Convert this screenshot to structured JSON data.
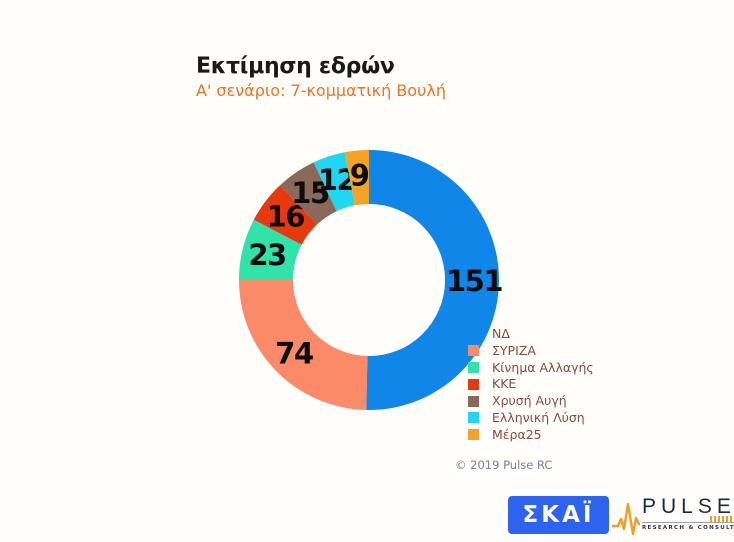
{
  "header": {
    "title": "Εκτίμηση εδρών",
    "subtitle": "Α' σενάριο: 7-κομματική Βουλή",
    "subtitle_color": "#f2711c"
  },
  "chart_data": {
    "type": "pie",
    "variant": "donut",
    "title": "Εκτίμηση εδρών",
    "subtitle": "Α' σενάριο: 7-κομματική Βουλή",
    "total_seats": 300,
    "start_angle_deg": 0,
    "direction": "clockwise",
    "inner_radius_ratio": 0.585,
    "legend_position": "right",
    "categories": [
      "ΝΔ",
      "ΣΥΡΙΖΑ",
      "Κίνημα Αλλαγής",
      "ΚΚΕ",
      "Χρυσή Αυγή",
      "Ελληνική Λύση",
      "Μέρα25"
    ],
    "values": [
      151,
      74,
      23,
      16,
      15,
      12,
      9
    ],
    "colors": [
      "#0f87e8",
      "#fa8a68",
      "#2fe3ab",
      "#e8380d",
      "#8a695a",
      "#1fd7f2",
      "#f5a226"
    ],
    "value_label_color": "#0d0d0d"
  },
  "legend": {
    "text_color": "#8a4a3e"
  },
  "footer": {
    "copyright": "© 2019 Pulse RC"
  },
  "logos": {
    "skai": {
      "text": "ΣΚΑΪ",
      "bg_color": "#2e63f0"
    },
    "pulse": {
      "name": "PULSE",
      "tagline": "RESEARCH & CONSULTING",
      "accent_color": "#f59b20"
    }
  }
}
